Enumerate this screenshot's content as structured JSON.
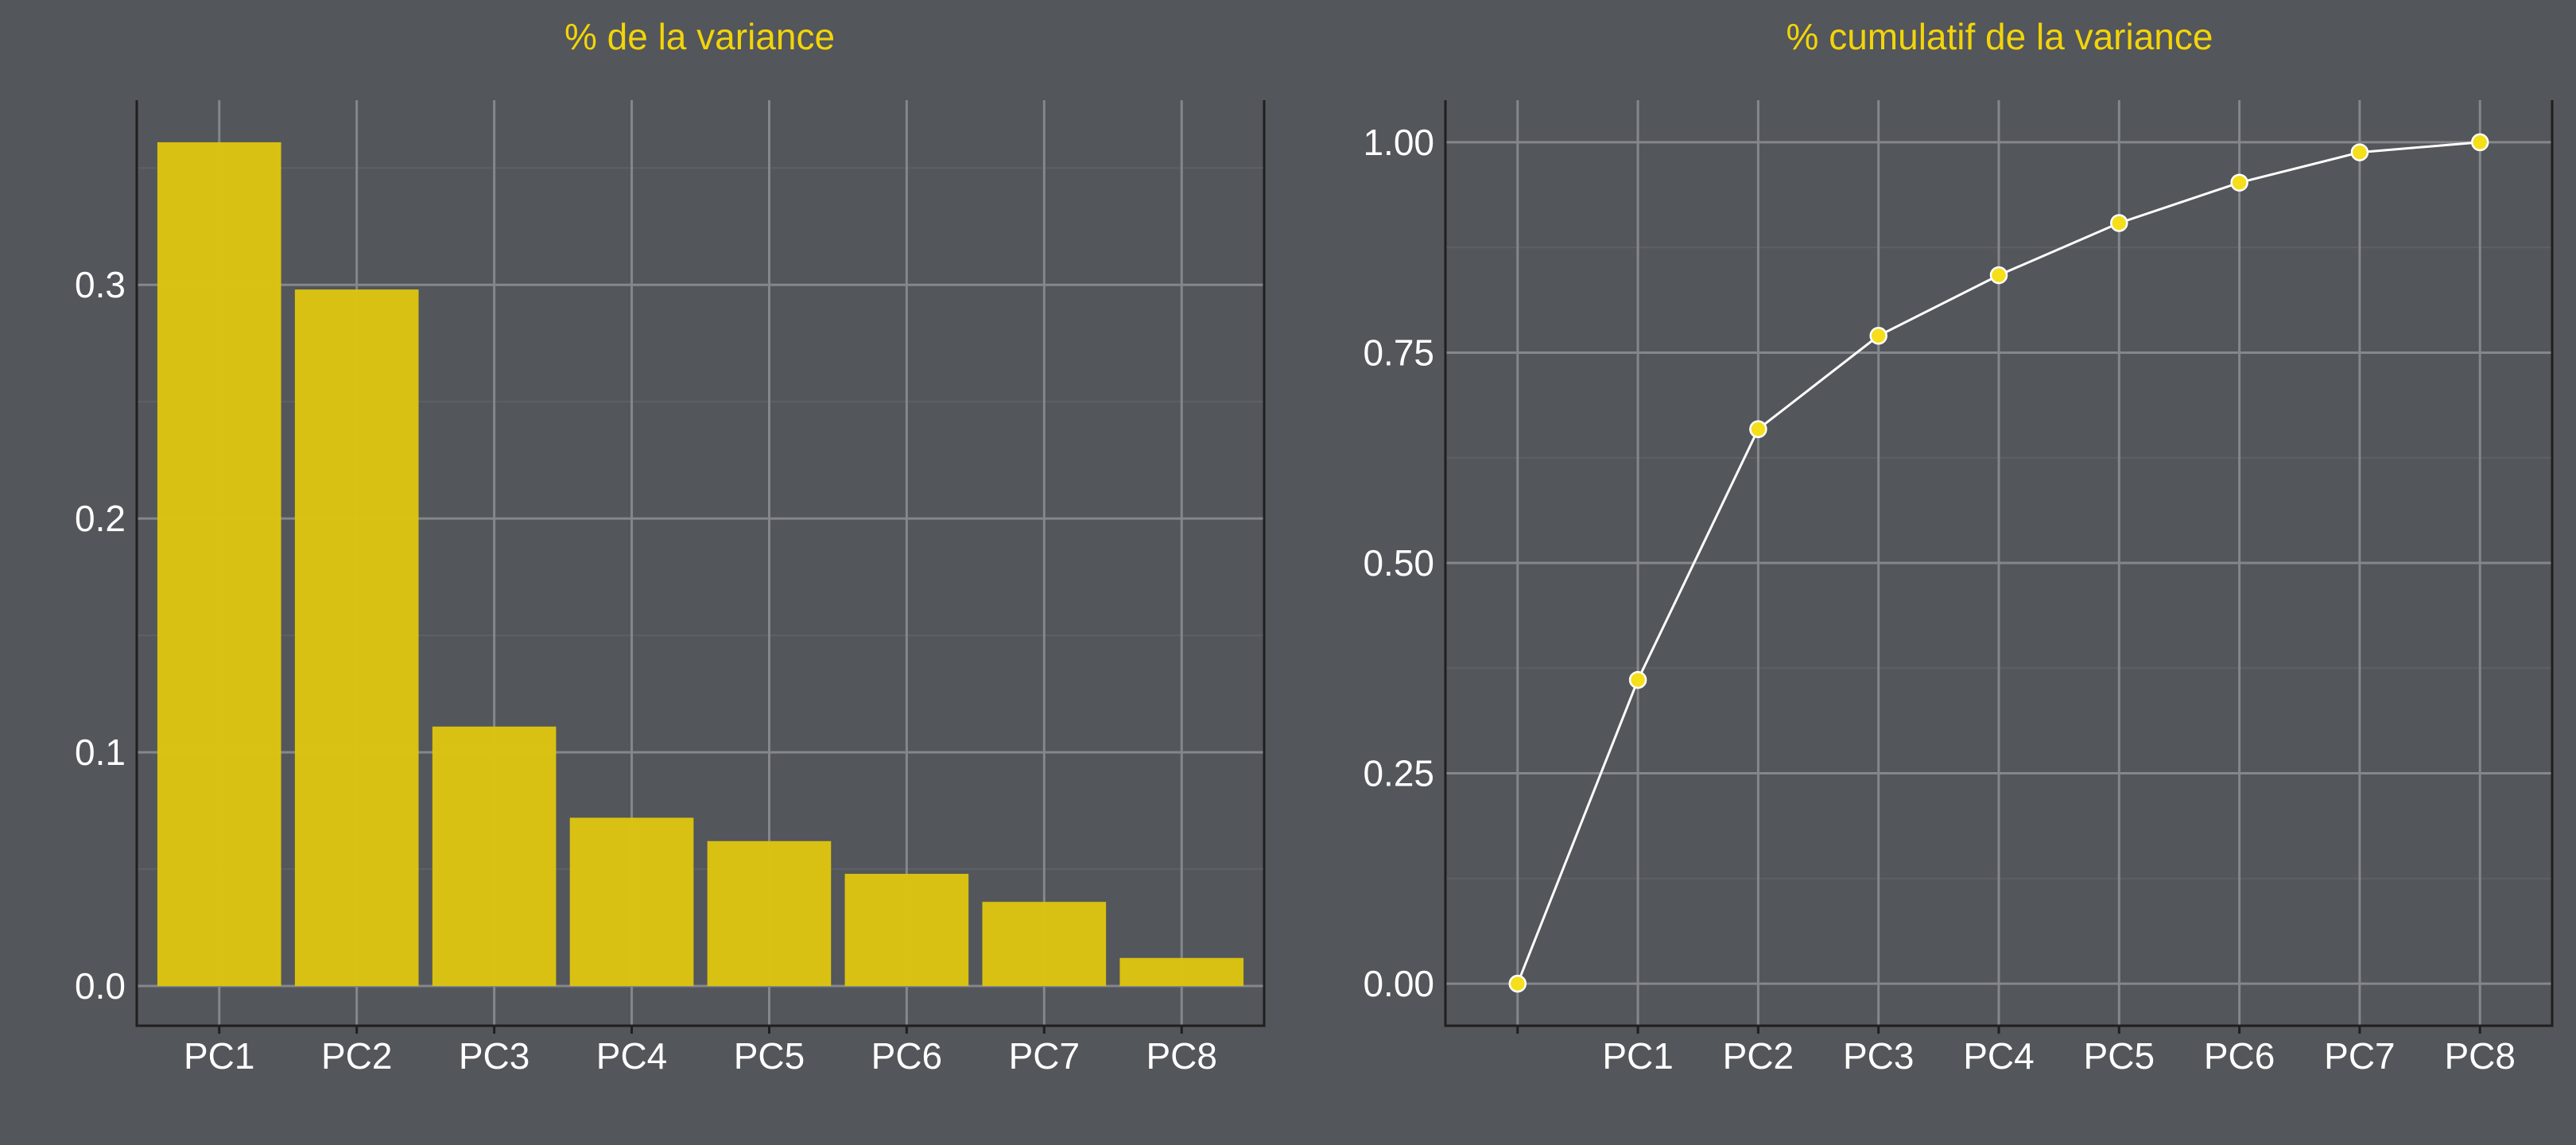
{
  "colors": {
    "background": "#53565a",
    "title": "#f2d40a",
    "bar_fill": "#ddc40f",
    "point_fill": "#f5de1a",
    "line": "#ffffff",
    "text": "#ffffff"
  },
  "chart_data": [
    {
      "type": "bar",
      "title": "% de la variance",
      "xlabel": "",
      "ylabel": "",
      "categories": [
        "PC1",
        "PC2",
        "PC3",
        "PC4",
        "PC5",
        "PC6",
        "PC7",
        "PC8"
      ],
      "values": [
        0.361,
        0.298,
        0.111,
        0.072,
        0.062,
        0.048,
        0.036,
        0.012
      ],
      "ylim": [
        -0.017,
        0.379
      ],
      "yticks": [
        0.0,
        0.1,
        0.2,
        0.3
      ],
      "ytick_labels": [
        "0.0",
        "0.1",
        "0.2",
        "0.3"
      ],
      "grid": true
    },
    {
      "type": "line",
      "title": "% cumulatif de la variance",
      "xlabel": "",
      "ylabel": "",
      "categories": [
        "",
        "PC1",
        "PC2",
        "PC3",
        "PC4",
        "PC5",
        "PC6",
        "PC7",
        "PC8"
      ],
      "values": [
        0.0,
        0.361,
        0.659,
        0.77,
        0.842,
        0.904,
        0.952,
        0.988,
        1.0
      ],
      "ylim": [
        -0.05,
        1.05
      ],
      "yticks": [
        0.0,
        0.25,
        0.5,
        0.75,
        1.0
      ],
      "ytick_labels": [
        "0.00",
        "0.25",
        "0.50",
        "0.75",
        "1.00"
      ],
      "grid": true,
      "markers": true
    }
  ]
}
